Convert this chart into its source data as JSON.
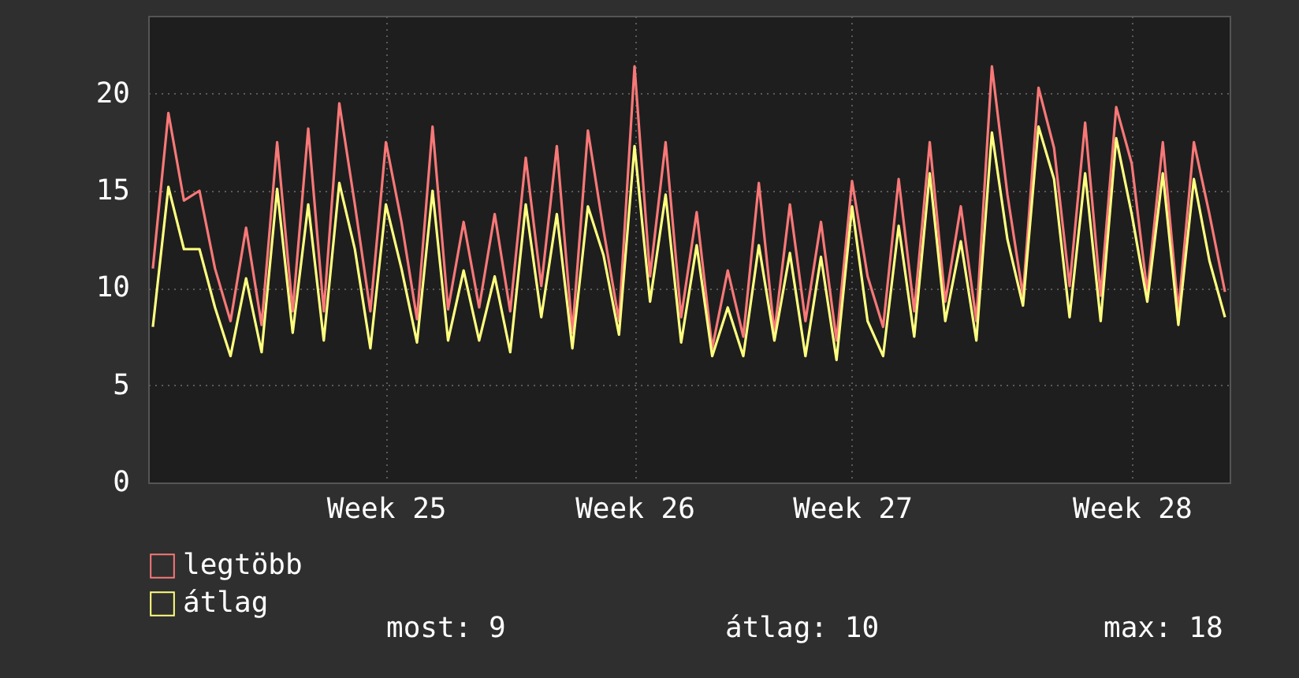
{
  "chart_data": {
    "type": "line",
    "categories": [
      null,
      null,
      null,
      null,
      null,
      null,
      null,
      null,
      null,
      null,
      null,
      null,
      null,
      null,
      null,
      "Week 25",
      null,
      null,
      null,
      null,
      null,
      null,
      null,
      null,
      null,
      null,
      null,
      null,
      null,
      null,
      null,
      "Week 26",
      null,
      null,
      null,
      null,
      null,
      null,
      null,
      null,
      null,
      null,
      null,
      null,
      null,
      "Week 27",
      null,
      null,
      null,
      null,
      null,
      null,
      null,
      null,
      null,
      null,
      null,
      null,
      null,
      null,
      null,
      null,
      null,
      "Week 28",
      null,
      null,
      null,
      null,
      null,
      null
    ],
    "series": [
      {
        "name": "legtöbb",
        "color": "#f87878",
        "values": [
          11,
          19,
          14.5,
          15,
          11,
          8.3,
          13.1,
          8.1,
          17.5,
          8.8,
          18.2,
          8.8,
          19.5,
          14.3,
          8.8,
          17.5,
          13.4,
          8.4,
          18.3,
          8.9,
          13.4,
          9,
          13.8,
          8.8,
          16.7,
          10.1,
          17.3,
          7.7,
          18.1,
          13,
          8.3,
          21.4,
          10.6,
          17.5,
          8.5,
          13.9,
          6.9,
          10.9,
          7.5,
          15.4,
          7.7,
          14.3,
          8.3,
          13.4,
          7.3,
          15.5,
          10.6,
          8,
          15.6,
          8.8,
          17.5,
          9.3,
          14.2,
          8.3,
          21.4,
          14.8,
          9.6,
          20.3,
          17.2,
          10.1,
          18.5,
          9.6,
          19.3,
          16.4,
          9.8,
          17.5,
          8.8,
          17.5,
          13.8,
          9.8
        ]
      },
      {
        "name": "átlag",
        "color": "#ffff80",
        "values": [
          8,
          15.2,
          12,
          12,
          9,
          6.5,
          10.5,
          6.7,
          15.1,
          7.7,
          14.3,
          7.3,
          15.4,
          12,
          6.9,
          14.3,
          11,
          7.2,
          15,
          7.3,
          10.9,
          7.3,
          10.6,
          6.7,
          14.3,
          8.5,
          13.8,
          6.9,
          14.2,
          11.7,
          7.6,
          17.3,
          9.3,
          14.8,
          7.2,
          12.2,
          6.5,
          9,
          6.5,
          12.2,
          7.3,
          11.8,
          6.5,
          11.6,
          6.3,
          14.2,
          8.3,
          6.5,
          13.2,
          7.5,
          15.9,
          8.3,
          12.4,
          7.3,
          18,
          12.5,
          9.1,
          18.3,
          15.6,
          8.5,
          15.9,
          8.3,
          17.7,
          13.8,
          9.3,
          15.9,
          8.1,
          15.6,
          11.4,
          8.5
        ]
      }
    ],
    "ylim": [
      0,
      24
    ],
    "yticks": [
      0,
      5,
      10,
      15,
      20
    ],
    "grid": true,
    "legend": "bottom left",
    "line_style": "solid",
    "annotations": [
      "most: 9",
      "átlag: 10",
      "max: 18"
    ]
  }
}
